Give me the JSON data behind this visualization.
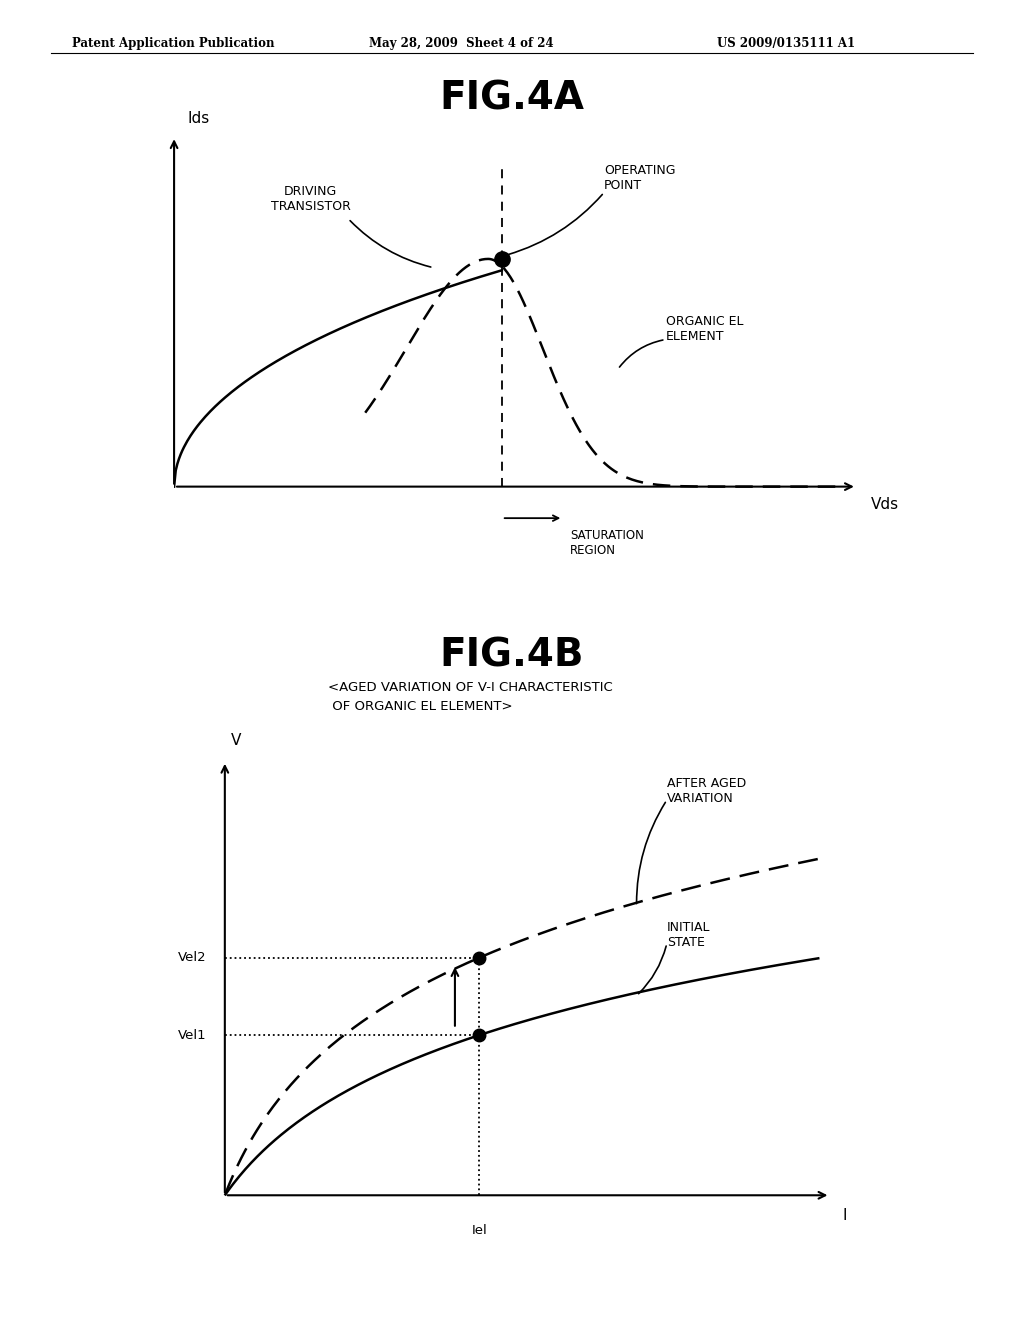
{
  "header_left": "Patent Application Publication",
  "header_mid": "May 28, 2009  Sheet 4 of 24",
  "header_right": "US 2009/0135111 A1",
  "fig4a_title": "FIG.4A",
  "fig4b_title": "FIG.4B",
  "fig4b_subtitle1": "<AGED VARIATION OF V-I CHARACTERISTIC",
  "fig4b_subtitle2": " OF ORGANIC EL ELEMENT>",
  "background_color": "#ffffff",
  "text_color": "#000000"
}
